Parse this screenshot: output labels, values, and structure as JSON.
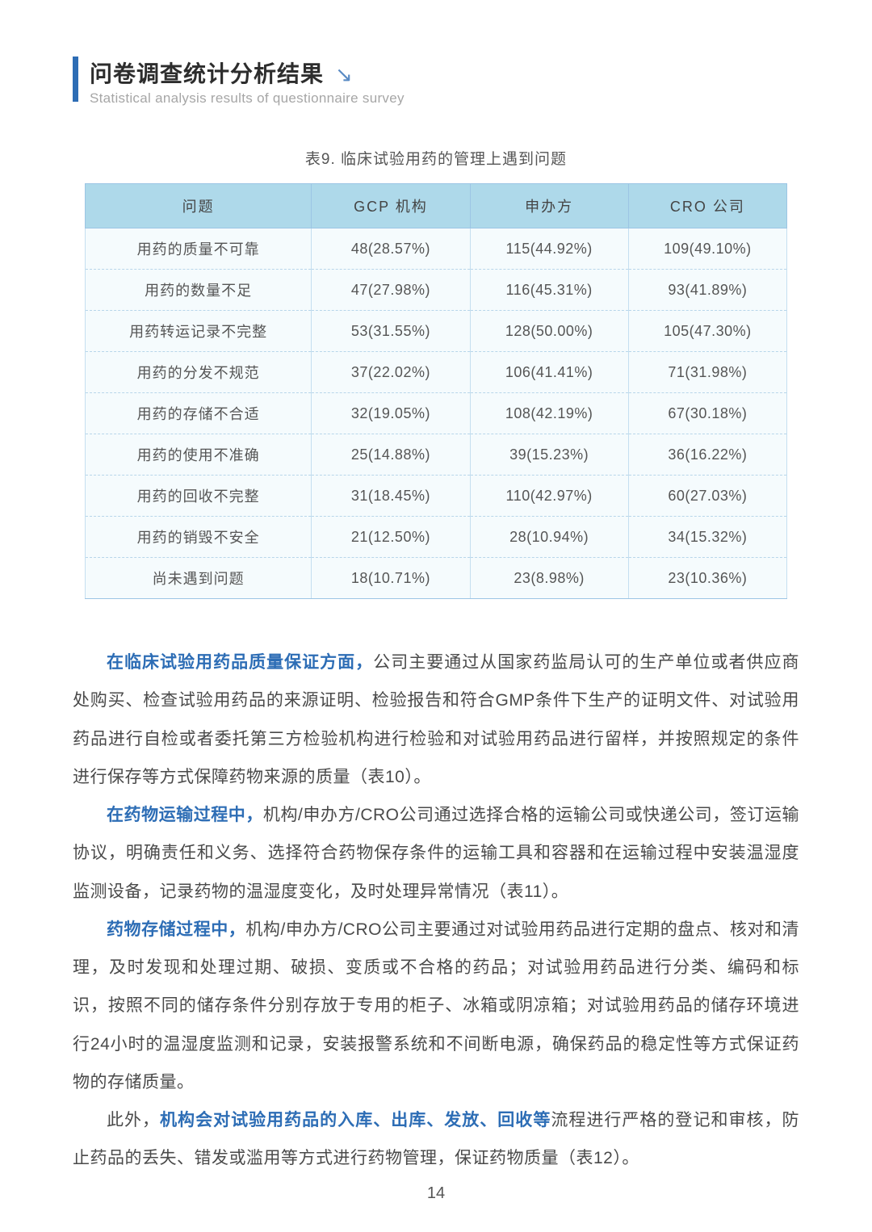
{
  "header": {
    "title": "问卷调查统计分析结果",
    "arrow": "↘",
    "subtitle": "Statistical analysis results of questionnaire survey"
  },
  "table": {
    "caption": "表9. 临床试验用药的管理上遇到问题",
    "columns": [
      "问题",
      "GCP 机构",
      "申办方",
      "CRO 公司"
    ],
    "rows": [
      [
        "用药的质量不可靠",
        "48(28.57%)",
        "115(44.92%)",
        "109(49.10%)"
      ],
      [
        "用药的数量不足",
        "47(27.98%)",
        "116(45.31%)",
        "93(41.89%)"
      ],
      [
        "用药转运记录不完整",
        "53(31.55%)",
        "128(50.00%)",
        "105(47.30%)"
      ],
      [
        "用药的分发不规范",
        "37(22.02%)",
        "106(41.41%)",
        "71(31.98%)"
      ],
      [
        "用药的存储不合适",
        "32(19.05%)",
        "108(42.19%)",
        "67(30.18%)"
      ],
      [
        "用药的使用不准确",
        "25(14.88%)",
        "39(15.23%)",
        "36(16.22%)"
      ],
      [
        "用药的回收不完整",
        "31(18.45%)",
        "110(42.97%)",
        "60(27.03%)"
      ],
      [
        "用药的销毁不安全",
        "21(12.50%)",
        "28(10.94%)",
        "34(15.32%)"
      ],
      [
        "尚未遇到问题",
        "18(10.71%)",
        "23(8.98%)",
        "23(10.36%)"
      ]
    ]
  },
  "paragraphs": [
    {
      "lead": "在临床试验用药品质量保证方面，",
      "rest": "公司主要通过从国家药监局认可的生产单位或者供应商处购买、检查试验用药品的来源证明、检验报告和符合GMP条件下生产的证明文件、对试验用药品进行自检或者委托第三方检验机构进行检验和对试验用药品进行留样，并按照规定的条件进行保存等方式保障药物来源的质量（表10）。"
    },
    {
      "lead": "在药物运输过程中，",
      "rest": "机构/申办方/CRO公司通过选择合格的运输公司或快递公司，签订运输协议，明确责任和义务、选择符合药物保存条件的运输工具和容器和在运输过程中安装温湿度监测设备，记录药物的温湿度变化，及时处理异常情况（表11）。"
    },
    {
      "lead": "药物存储过程中，",
      "rest": "机构/申办方/CRO公司主要通过对试验用药品进行定期的盘点、核对和清理，及时发现和处理过期、破损、变质或不合格的药品；对试验用药品进行分类、编码和标识，按照不同的储存条件分别存放于专用的柜子、冰箱或阴凉箱；对试验用药品的储存环境进行24小时的温湿度监测和记录，安装报警系统和不间断电源，确保药品的稳定性等方式保证药物的存储质量。"
    }
  ],
  "lastPara": {
    "pre": "此外，",
    "highlight": "机构会对试验用药品的入库、出库、发放、回收等",
    "post": "流程进行严格的登记和审核，防止药品的丢失、错发或滥用等方式进行药物管理，保证药物质量（表12）。"
  },
  "pageNumber": "14",
  "colors": {
    "accent": "#2d6db5",
    "headerBg": "#aed9ea",
    "tableBg": "#f5fbfd",
    "border": "#9cc5e4"
  }
}
